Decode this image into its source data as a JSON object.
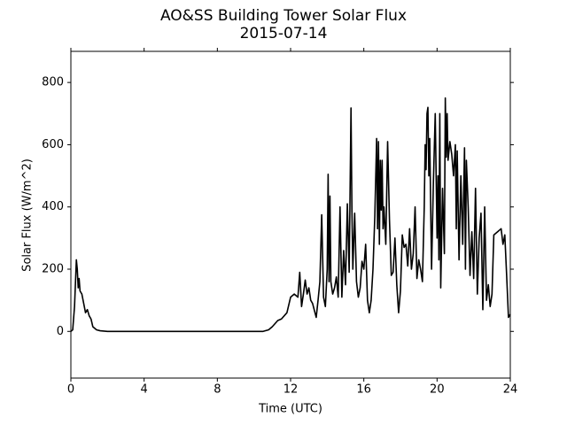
{
  "chart_data": {
    "type": "line",
    "title": "AO&SS Building Tower Solar Flux",
    "subtitle": "2015-07-14",
    "x_label": "Time (UTC)",
    "y_label": "Solar Flux (W/m^2)",
    "xlim": [
      0,
      24
    ],
    "xticks": [
      0,
      4,
      8,
      12,
      16,
      20,
      24
    ],
    "ylim": [
      -150,
      900
    ],
    "yticks": [
      0,
      200,
      400,
      600,
      800
    ],
    "series": [
      {
        "color": "#000000",
        "x": [
          0,
          0.1,
          0.2,
          0.3,
          0.35,
          0.4,
          0.45,
          0.5,
          0.6,
          0.7,
          0.8,
          0.9,
          1.0,
          1.1,
          1.2,
          1.4,
          1.6,
          2,
          10.5,
          10.8,
          11.0,
          11.3,
          11.5,
          11.8,
          12.0,
          12.2,
          12.4,
          12.5,
          12.6,
          12.7,
          12.8,
          12.9,
          13.0,
          13.1,
          13.2,
          13.4,
          13.5,
          13.6,
          13.7,
          13.8,
          13.9,
          14.0,
          14.05,
          14.1,
          14.15,
          14.2,
          14.3,
          14.4,
          14.5,
          14.6,
          14.7,
          14.8,
          14.9,
          15.0,
          15.1,
          15.2,
          15.3,
          15.35,
          15.4,
          15.5,
          15.6,
          15.7,
          15.8,
          15.9,
          16.0,
          16.1,
          16.2,
          16.3,
          16.4,
          16.5,
          16.6,
          16.7,
          16.75,
          16.8,
          16.85,
          16.9,
          16.95,
          17.0,
          17.05,
          17.1,
          17.2,
          17.3,
          17.4,
          17.5,
          17.6,
          17.7,
          17.8,
          17.9,
          18.0,
          18.1,
          18.2,
          18.3,
          18.4,
          18.5,
          18.6,
          18.7,
          18.8,
          18.9,
          19.0,
          19.1,
          19.2,
          19.3,
          19.35,
          19.4,
          19.45,
          19.5,
          19.55,
          19.6,
          19.7,
          19.8,
          19.9,
          20.0,
          20.05,
          20.1,
          20.15,
          20.2,
          20.3,
          20.4,
          20.45,
          20.5,
          20.55,
          20.6,
          20.7,
          20.8,
          20.9,
          21.0,
          21.05,
          21.1,
          21.2,
          21.3,
          21.4,
          21.5,
          21.55,
          21.6,
          21.7,
          21.8,
          21.9,
          22.0,
          22.1,
          22.2,
          22.3,
          22.4,
          22.5,
          22.6,
          22.7,
          22.8,
          22.9,
          23.0,
          23.1,
          23.3,
          23.5,
          23.6,
          23.7,
          23.8,
          23.9,
          24.0
        ],
        "values": [
          0,
          5,
          80,
          230,
          200,
          140,
          170,
          130,
          120,
          90,
          60,
          70,
          50,
          40,
          15,
          5,
          2,
          0,
          0,
          5,
          15,
          35,
          40,
          60,
          110,
          120,
          110,
          190,
          80,
          120,
          165,
          120,
          140,
          100,
          90,
          45,
          100,
          160,
          375,
          110,
          80,
          200,
          505,
          160,
          435,
          160,
          120,
          140,
          175,
          110,
          400,
          110,
          260,
          150,
          410,
          190,
          718,
          390,
          200,
          380,
          160,
          110,
          140,
          225,
          200,
          280,
          100,
          60,
          100,
          200,
          370,
          620,
          330,
          610,
          280,
          550,
          390,
          550,
          330,
          400,
          280,
          610,
          360,
          180,
          190,
          300,
          150,
          60,
          130,
          310,
          270,
          280,
          210,
          330,
          200,
          250,
          400,
          170,
          230,
          200,
          160,
          400,
          600,
          520,
          700,
          720,
          500,
          620,
          200,
          480,
          700,
          300,
          500,
          230,
          700,
          140,
          460,
          250,
          750,
          560,
          700,
          550,
          610,
          570,
          500,
          600,
          330,
          580,
          230,
          500,
          280,
          590,
          200,
          550,
          400,
          180,
          320,
          170,
          460,
          120,
          300,
          380,
          70,
          400,
          100,
          150,
          80,
          120,
          310,
          320,
          330,
          280,
          310,
          180,
          45,
          55
        ]
      }
    ]
  }
}
